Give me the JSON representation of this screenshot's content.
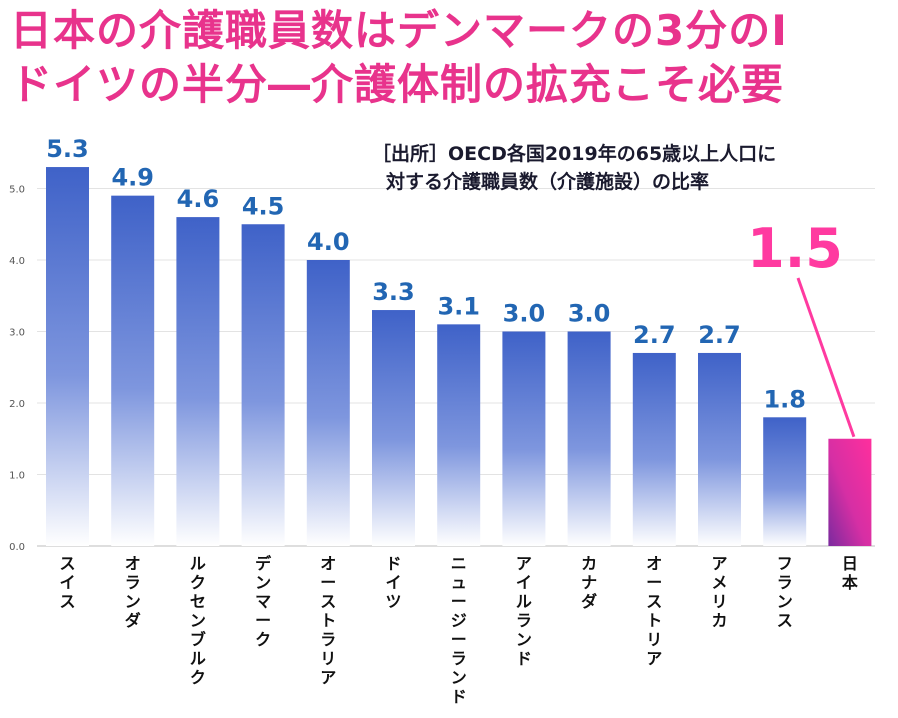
{
  "headline": {
    "line1": "日本の介護職員数はデンマークの3分のⅠ",
    "line2": "ドイツの半分―介護体制の拡充こそ必要"
  },
  "source": {
    "line1": "［出所］OECD各国2019年の65歳以上人口に",
    "line2": "対する介護職員数（介護施設）の比率"
  },
  "highlight": {
    "label": "1.5",
    "color": "#ff3aa0"
  },
  "colors": {
    "bar": "#3f62c8",
    "bar_highlight": "#ff2f9d",
    "value_label": "#2266b3",
    "headline": "#e8338c"
  },
  "chart_data": {
    "type": "bar",
    "categories": [
      "スイス",
      "オランダ",
      "ルクセンブルク",
      "デンマーク",
      "オーストラリア",
      "ドイツ",
      "ニュージーランド",
      "アイルランド",
      "カナダ",
      "オーストリア",
      "アメリカ",
      "フランス",
      "日本"
    ],
    "values": [
      5.3,
      4.9,
      4.6,
      4.5,
      4.0,
      3.3,
      3.1,
      3.0,
      3.0,
      2.7,
      2.7,
      1.8,
      1.5
    ],
    "value_labels": [
      "5.3",
      "4.9",
      "4.6",
      "4.5",
      "4.0",
      "3.3",
      "3.1",
      "3.0",
      "3.0",
      "2.7",
      "2.7",
      "1.8",
      ""
    ],
    "yticks": [
      "0.0",
      "1.0",
      "2.0",
      "3.0",
      "4.0",
      "5.0"
    ],
    "ylim": [
      0,
      5.5
    ],
    "grid": true,
    "highlight_category": "日本"
  }
}
